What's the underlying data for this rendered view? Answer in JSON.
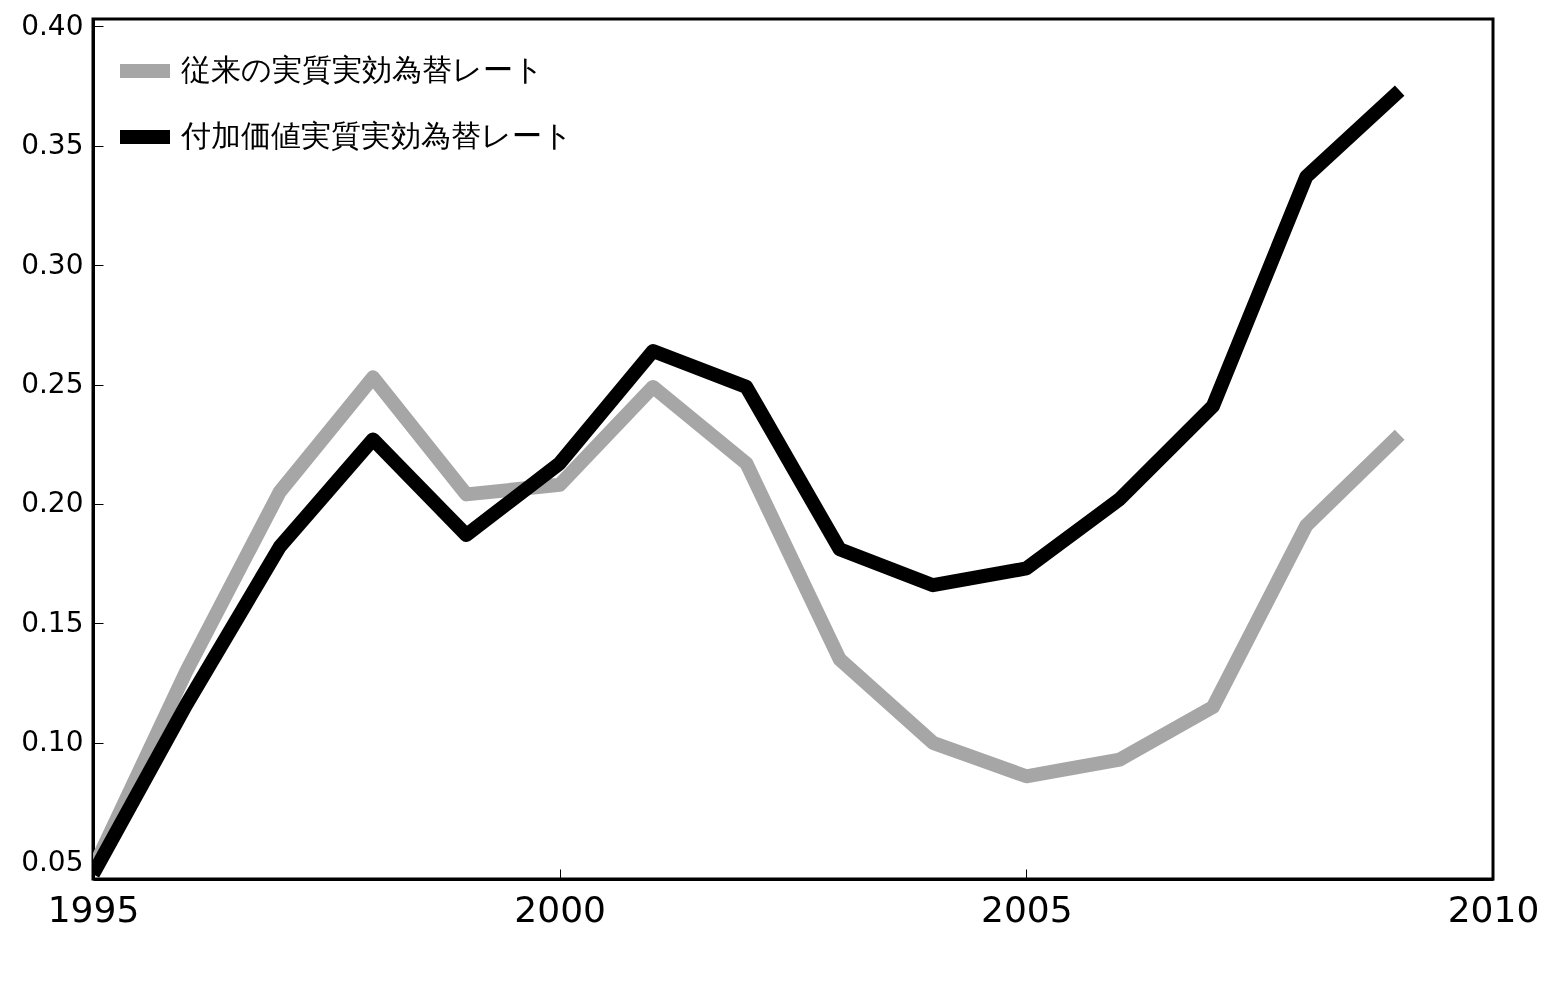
{
  "chart_data": {
    "type": "line",
    "x": [
      1995,
      1996,
      1997,
      1998,
      1999,
      2000,
      2001,
      2002,
      2003,
      2004,
      2005,
      2006,
      2007,
      2008,
      2009
    ],
    "series": [
      {
        "name": "従来の実質実効為替レート",
        "color": "#a6a6a6",
        "values": [
          0.047,
          0.13,
          0.205,
          0.253,
          0.204,
          0.208,
          0.249,
          0.217,
          0.135,
          0.1,
          0.086,
          0.093,
          0.115,
          0.191,
          0.229
        ]
      },
      {
        "name": "付加価値実質実効為替レート",
        "color": "#000000",
        "values": [
          0.045,
          0.116,
          0.182,
          0.227,
          0.187,
          0.217,
          0.264,
          0.249,
          0.181,
          0.166,
          0.173,
          0.202,
          0.241,
          0.337,
          0.373
        ]
      }
    ],
    "xlim": [
      1995,
      2010
    ],
    "xticks": [
      1995,
      2000,
      2005,
      2010
    ],
    "ylim": [
      0.043,
      0.403
    ],
    "yticks": [
      0.05,
      {
        "value": 0.1,
        "label": "0.10"
      },
      0.15,
      {
        "value": 0.2,
        "label": "0.20"
      },
      0.25,
      {
        "value": 0.3,
        "label": "0.30"
      },
      0.35,
      {
        "value": 0.4,
        "label": "0.40"
      }
    ],
    "grid": false,
    "legend": "top left",
    "marker": "none",
    "line_style": "solid"
  }
}
